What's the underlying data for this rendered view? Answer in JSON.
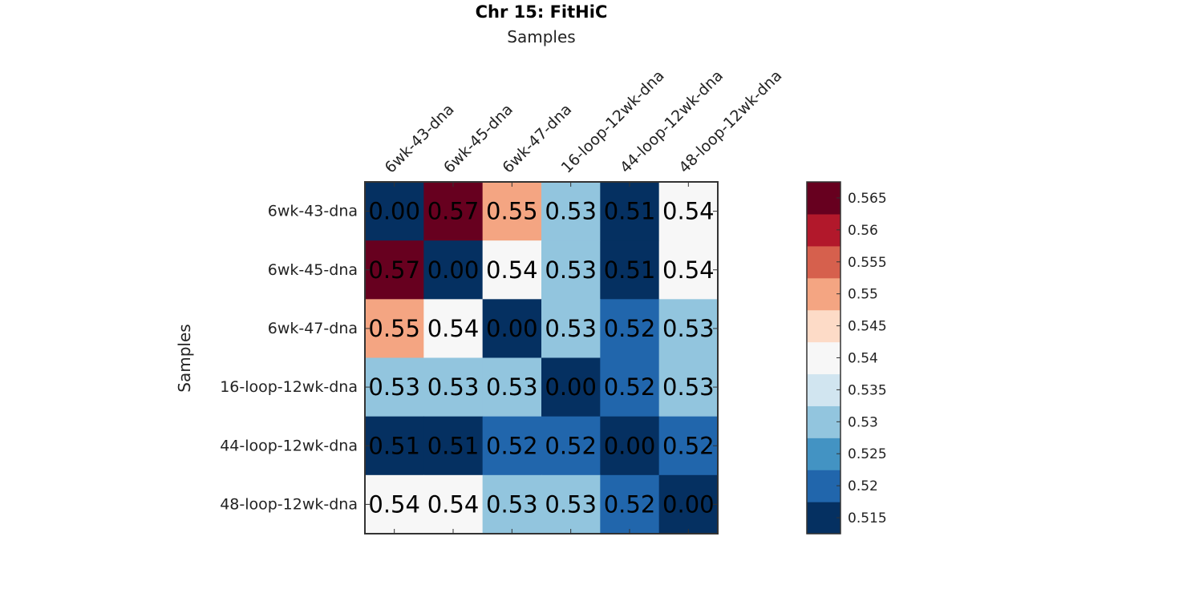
{
  "chart_data": {
    "type": "heatmap",
    "title": "Chr 15: FitHiC",
    "xlabel": "Samples",
    "ylabel": "Samples",
    "x_categories": [
      "6wk-43-dna",
      "6wk-45-dna",
      "6wk-47-dna",
      "16-loop-12wk-dna",
      "44-loop-12wk-dna",
      "48-loop-12wk-dna"
    ],
    "y_categories": [
      "6wk-43-dna",
      "6wk-45-dna",
      "6wk-47-dna",
      "16-loop-12wk-dna",
      "44-loop-12wk-dna",
      "48-loop-12wk-dna"
    ],
    "values": [
      [
        0.0,
        0.57,
        0.55,
        0.53,
        0.51,
        0.54
      ],
      [
        0.57,
        0.0,
        0.54,
        0.53,
        0.51,
        0.54
      ],
      [
        0.55,
        0.54,
        0.0,
        0.53,
        0.52,
        0.53
      ],
      [
        0.53,
        0.53,
        0.53,
        0.0,
        0.52,
        0.53
      ],
      [
        0.51,
        0.51,
        0.52,
        0.52,
        0.0,
        0.52
      ],
      [
        0.54,
        0.54,
        0.53,
        0.53,
        0.52,
        0.0
      ]
    ],
    "labels": [
      [
        "0.00",
        "0.57",
        "0.55",
        "0.53",
        "0.51",
        "0.54"
      ],
      [
        "0.57",
        "0.00",
        "0.54",
        "0.53",
        "0.51",
        "0.54"
      ],
      [
        "0.55",
        "0.54",
        "0.00",
        "0.53",
        "0.52",
        "0.53"
      ],
      [
        "0.53",
        "0.53",
        "0.53",
        "0.00",
        "0.52",
        "0.53"
      ],
      [
        "0.51",
        "0.51",
        "0.52",
        "0.52",
        "0.00",
        "0.52"
      ],
      [
        "0.54",
        "0.54",
        "0.53",
        "0.53",
        "0.52",
        "0.00"
      ]
    ],
    "colorbar": {
      "range": [
        0.5125,
        0.5675
      ],
      "ticks": [
        0.515,
        0.52,
        0.525,
        0.53,
        0.535,
        0.54,
        0.545,
        0.55,
        0.555,
        0.56,
        0.565
      ],
      "tick_labels": [
        "0.515",
        "0.52",
        "0.525",
        "0.53",
        "0.535",
        "0.54",
        "0.545",
        "0.55",
        "0.555",
        "0.56",
        "0.565"
      ],
      "colors": [
        "#053061",
        "#2166ac",
        "#4393c3",
        "#92c5de",
        "#d1e5f0",
        "#f7f7f7",
        "#fddbc7",
        "#f4a582",
        "#d6604d",
        "#b2182b",
        "#67001f"
      ]
    }
  }
}
